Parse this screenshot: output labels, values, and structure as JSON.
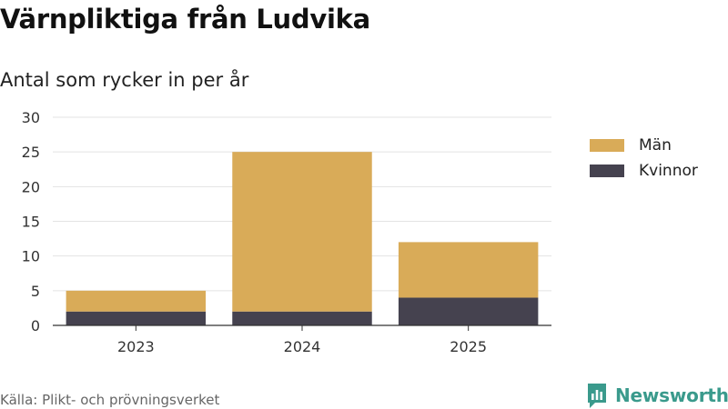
{
  "title": "Värnpliktiga från Ludvika",
  "subtitle": "Antal som rycker in per år",
  "source": "Källa: Plikt- och prövningsverket",
  "brand": "Newsworthy",
  "colors": {
    "man": "#d9ab58",
    "kvinnor": "#45424f",
    "grid": "#e3e3e3",
    "axis": "#333333",
    "brand": "#3a9a8c"
  },
  "chart_data": {
    "type": "bar",
    "stacked": true,
    "categories": [
      "2023",
      "2024",
      "2025"
    ],
    "series": [
      {
        "name": "Kvinnor",
        "values": [
          2,
          2,
          4
        ],
        "color": "#45424f"
      },
      {
        "name": "Män",
        "values": [
          3,
          23,
          8
        ],
        "color": "#d9ab58"
      }
    ],
    "legend": [
      {
        "name": "Män",
        "color": "#d9ab58"
      },
      {
        "name": "Kvinnor",
        "color": "#45424f"
      }
    ],
    "yticks": [
      0,
      5,
      10,
      15,
      20,
      25,
      30
    ],
    "ylim": [
      0,
      30
    ],
    "xlabel": "",
    "ylabel": "",
    "grid": true,
    "legend_position": "right"
  }
}
